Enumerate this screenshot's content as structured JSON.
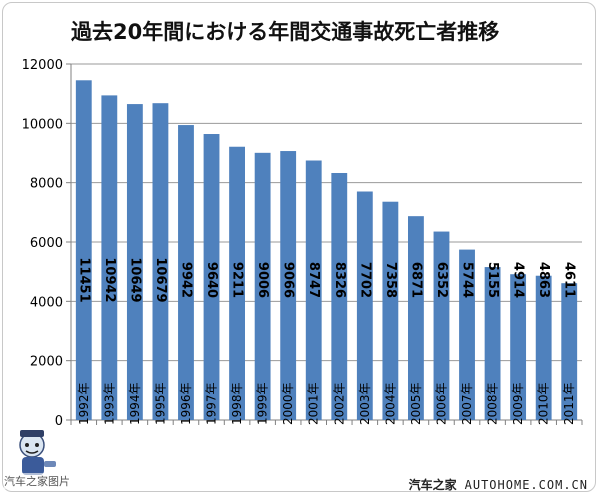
{
  "chart_data": {
    "type": "bar",
    "title": "過去20年間における年間交通事故死亡者推移",
    "categories": [
      "1992年",
      "1993年",
      "1994年",
      "1995年",
      "1996年",
      "1997年",
      "1998年",
      "1999年",
      "2000年",
      "2001年",
      "2002年",
      "2003年",
      "2004年",
      "2005年",
      "2006年",
      "2007年",
      "2008年",
      "2009年",
      "2010年",
      "2011年"
    ],
    "values": [
      11451,
      10942,
      10649,
      10679,
      9942,
      9640,
      9211,
      9006,
      9066,
      8747,
      8326,
      7702,
      7358,
      6871,
      6352,
      5744,
      5155,
      4914,
      4863,
      4611
    ],
    "ylim": [
      0,
      12000
    ],
    "yticks": [
      0,
      2000,
      4000,
      6000,
      8000,
      10000,
      12000
    ],
    "grid": true,
    "bar_color": "#4f81bd",
    "xlabel": "",
    "ylabel": ""
  },
  "watermarks": {
    "left_text": "汽车之家图片",
    "right_brand": "汽车之家",
    "right_url": "AUTOHOME.COM.CN"
  }
}
